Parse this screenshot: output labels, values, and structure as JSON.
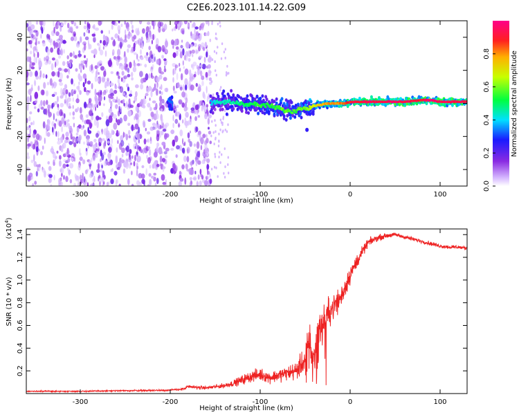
{
  "figure_title": "C2E6.2023.101.14.22.G09",
  "colors": {
    "snr_line": "#ee2222",
    "ridge_core": "#ff2040",
    "speckle": "#7a22e8"
  },
  "chart_data": [
    {
      "type": "heatmap",
      "title": "",
      "xlabel": "Height of straight line (km)",
      "ylabel": "Frequency (Hz)",
      "xlim": [
        -360,
        130
      ],
      "ylim": [
        -50,
        50
      ],
      "xticks": [
        "-300",
        "-200",
        "-100",
        "0",
        "100"
      ],
      "yticks": [
        "-40",
        "-20",
        "0",
        "20",
        "40"
      ],
      "colorbar": {
        "label": "Normalized spectral amplitude",
        "range": [
          0,
          1
        ],
        "ticks": [
          "0.0",
          "0.2",
          "0.4",
          "0.6",
          "0.8"
        ],
        "colormap": "rainbow (white-violet-blue-cyan-green-yellow-red-magenta)"
      },
      "noise_region_km": [
        -360,
        -155
      ],
      "gap_region_km": [
        -203,
        -198
      ],
      "ridge": {
        "description": "Doppler ridge frequency (Hz) vs height (km)",
        "x": [
          -155,
          -140,
          -120,
          -100,
          -85,
          -75,
          -65,
          -55,
          -45,
          -35,
          -25,
          -15,
          -5,
          0,
          20,
          40,
          60,
          80,
          90,
          100,
          130
        ],
        "freq": [
          0,
          1,
          0,
          -1,
          -2,
          -4,
          -5,
          -3,
          -2,
          -1,
          0,
          0,
          0,
          1,
          1,
          1,
          1,
          2,
          2,
          1,
          1
        ],
        "amplitude": [
          0.35,
          0.4,
          0.45,
          0.5,
          0.5,
          0.55,
          0.5,
          0.55,
          0.6,
          0.7,
          0.75,
          0.75,
          0.8,
          0.85,
          0.9,
          0.9,
          0.9,
          0.85,
          0.95,
          0.9,
          0.88
        ]
      }
    },
    {
      "type": "line",
      "title": "",
      "xlabel": "Height of straight line (km)",
      "ylabel": "SNR (10 * v/v)",
      "y_multiplier": "(x10",
      "y_multiplier_exp": "4",
      "y_multiplier_close": ")",
      "xlim": [
        -360,
        130
      ],
      "ylim": [
        0,
        14500
      ],
      "xticks": [
        "-300",
        "-200",
        "-100",
        "0",
        "100"
      ],
      "yticks": [
        "0.2",
        "0.4",
        "0.6",
        "0.8",
        "1.0",
        "1.2",
        "1.4"
      ],
      "series": [
        {
          "x": [
            -360,
            -300,
            -250,
            -200,
            -185,
            -180,
            -160,
            -140,
            -130,
            -120,
            -110,
            -100,
            -90,
            -80,
            -70,
            -60,
            -50,
            -45,
            -42,
            -38,
            -35,
            -30,
            -20,
            -10,
            0,
            10,
            20,
            30,
            40,
            50,
            60,
            70,
            80,
            90,
            100,
            110,
            120,
            130
          ],
          "values": [
            200,
            200,
            250,
            300,
            400,
            600,
            500,
            700,
            900,
            1200,
            1500,
            1700,
            1400,
            1600,
            1800,
            2000,
            3000,
            5000,
            3000,
            4500,
            5500,
            6500,
            7500,
            8500,
            10500,
            12000,
            13300,
            13700,
            13900,
            14000,
            13800,
            13600,
            13400,
            13200,
            13000,
            12900,
            12900,
            12800
          ],
          "noise": [
            80,
            80,
            100,
            120,
            160,
            250,
            200,
            300,
            400,
            600,
            700,
            800,
            700,
            800,
            900,
            1200,
            1500,
            2500,
            1500,
            2000,
            2000,
            2000,
            1800,
            1500,
            1200,
            800,
            500,
            400,
            300,
            250,
            250,
            250,
            250,
            250,
            250,
            250,
            250,
            250
          ]
        }
      ]
    }
  ]
}
